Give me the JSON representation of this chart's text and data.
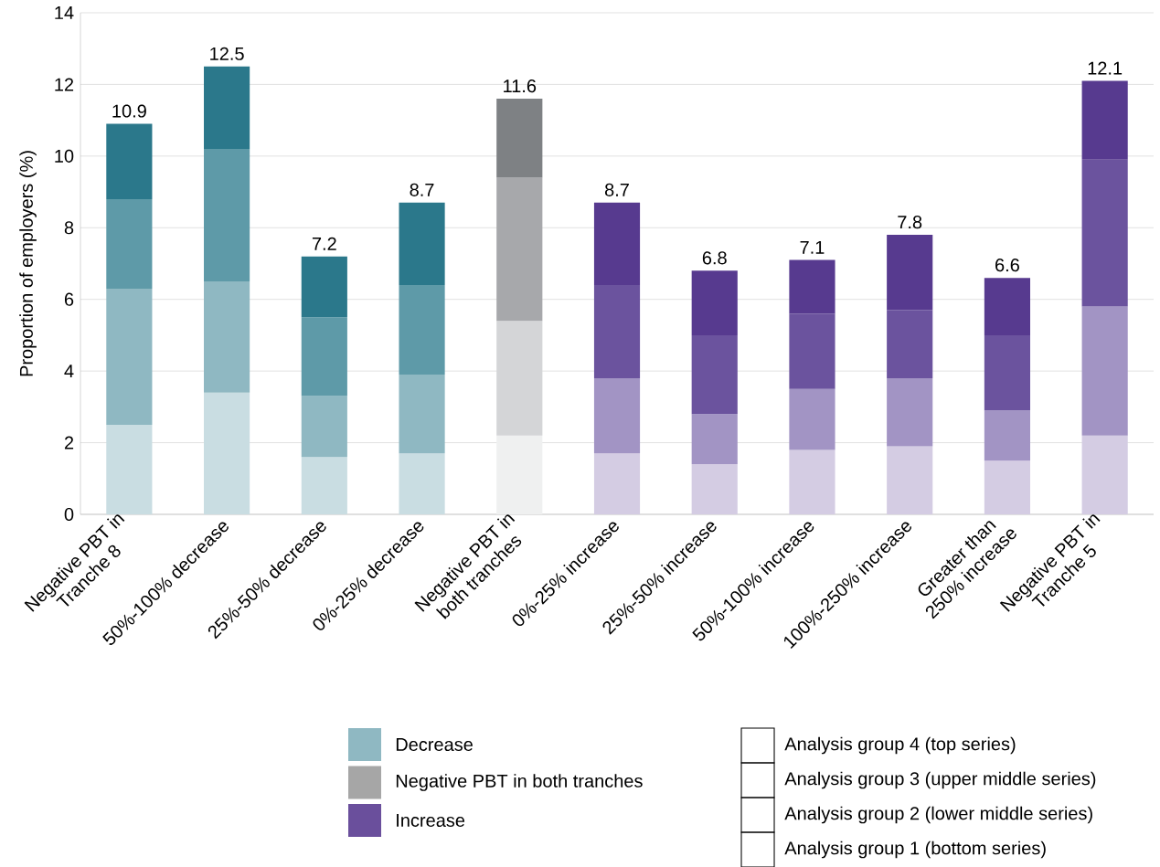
{
  "chart_data": {
    "type": "bar",
    "stacked": true,
    "ylabel": "Proportion of employers (%)",
    "categories": [
      "Negative PBT in Tranche 8",
      "50%-100% decrease",
      "25%-50% decrease",
      "0%-25% decrease",
      "Negative PBT in both tranches",
      "0%-25% increase",
      "25%-50% increase",
      "50%-100% increase",
      "100%-250% increase",
      "Greater than 250% increase",
      "Negative PBT in Tranche 5"
    ],
    "series": [
      {
        "color": "#ffffff",
        "colors": [
          "#c9dde2",
          "#c9dde2",
          "#c9dde2",
          "#c9dde2",
          "#eff0f0",
          "#d4cce3",
          "#d4cce3",
          "#d4cce3",
          "#d4cce3",
          "#d4cce3",
          "#d4cce3"
        ],
        "values": [
          2.5,
          3.4,
          1.6,
          1.7,
          2.2,
          1.7,
          1.4,
          1.8,
          1.9,
          1.5,
          2.2
        ]
      },
      {
        "color": "#ffffff",
        "colors": [
          "#8fb8c2",
          "#8fb8c2",
          "#8fb8c2",
          "#8fb8c2",
          "#d4d5d7",
          "#a294c4",
          "#a294c4",
          "#a294c4",
          "#a294c4",
          "#a294c4",
          "#a294c4"
        ],
        "values": [
          3.8,
          3.1,
          1.7,
          2.2,
          3.2,
          2.1,
          1.4,
          1.7,
          1.9,
          1.4,
          3.6
        ]
      },
      {
        "color": "#ffffff",
        "colors": [
          "#5e9aa8",
          "#5e9aa8",
          "#5e9aa8",
          "#5e9aa8",
          "#a7a8ab",
          "#6b539e",
          "#6b539e",
          "#6b539e",
          "#6b539e",
          "#6b539e",
          "#6b539e"
        ],
        "values": [
          2.5,
          3.7,
          2.2,
          2.5,
          4.0,
          2.6,
          2.2,
          2.1,
          1.9,
          2.1,
          4.1
        ]
      },
      {
        "color": "#ffffff",
        "colors": [
          "#2b788b",
          "#2b788b",
          "#2b788b",
          "#2b788b",
          "#7e8184",
          "#573a8f",
          "#573a8f",
          "#573a8f",
          "#573a8f",
          "#573a8f",
          "#573a8f"
        ],
        "values": [
          2.1,
          2.3,
          1.7,
          2.3,
          2.2,
          2.3,
          1.8,
          1.5,
          2.1,
          1.6,
          2.2
        ]
      },
      {
        "name": "Decrease",
        "color": "#8fb8c2",
        "values": [
          null,
          null,
          null,
          null,
          null,
          null,
          null,
          null,
          null,
          null,
          null
        ]
      },
      {
        "name": "Negative PBT in both tranches",
        "color": "#a6a6a6",
        "values": [
          null,
          null,
          null,
          null,
          null,
          null,
          null,
          null,
          null,
          null,
          null
        ]
      },
      {
        "name": "Increase",
        "color": "#6a4f9c",
        "values": [
          null,
          null,
          null,
          null,
          null,
          null,
          null,
          null,
          null,
          null,
          null
        ]
      }
    ],
    "annotations": [
      "Analysis group 4 (top series)",
      "Analysis group 3 (upper middle series)",
      "Analysis group 2 (lower middle series)",
      "Analysis group 1 (bottom series)"
    ],
    "totals": [
      "10.9",
      "12.5",
      "7.2",
      "8.7",
      "11.6",
      "8.7",
      "6.8",
      "7.1",
      "7.8",
      "6.6",
      "12.1"
    ],
    "ylim": [
      0,
      14
    ],
    "yticks": [
      0,
      2,
      4,
      6,
      8,
      10,
      12,
      14
    ],
    "grid": "y",
    "legend": "bottom"
  }
}
